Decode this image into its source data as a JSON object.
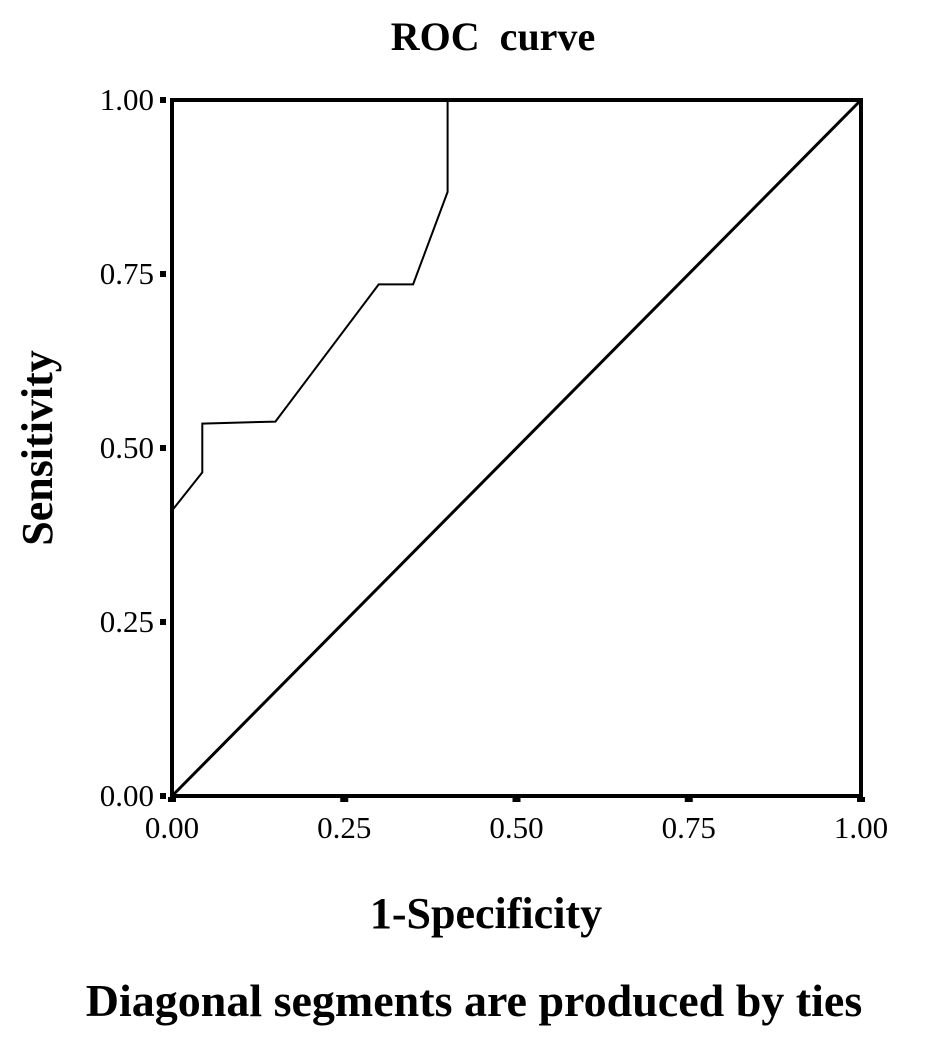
{
  "chart_data": {
    "type": "line",
    "title": "ROC  curve",
    "xlabel": "1-Specificity",
    "ylabel": "Sensitivity",
    "footnote": "Diagonal segments are produced by ties",
    "xlim": [
      0,
      1
    ],
    "ylim": [
      0,
      1
    ],
    "x_ticks": [
      "0.00",
      "0.25",
      "0.50",
      "0.75",
      "1.00"
    ],
    "y_ticks": [
      "0.00",
      "0.25",
      "0.50",
      "0.75",
      "1.00"
    ],
    "grid": false,
    "series": [
      {
        "points": [
          [
            0.0,
            0.41
          ],
          [
            0.044,
            0.465
          ],
          [
            0.044,
            0.535
          ],
          [
            0.15,
            0.538
          ],
          [
            0.3,
            0.735
          ],
          [
            0.35,
            0.735
          ],
          [
            0.4,
            0.868
          ],
          [
            0.4,
            1.0
          ],
          [
            1.0,
            1.0
          ]
        ]
      },
      {
        "points": [
          [
            0.0,
            0.0
          ],
          [
            1.0,
            1.0
          ]
        ]
      }
    ],
    "colors": {
      "line": "#000000",
      "background": "#ffffff"
    }
  }
}
